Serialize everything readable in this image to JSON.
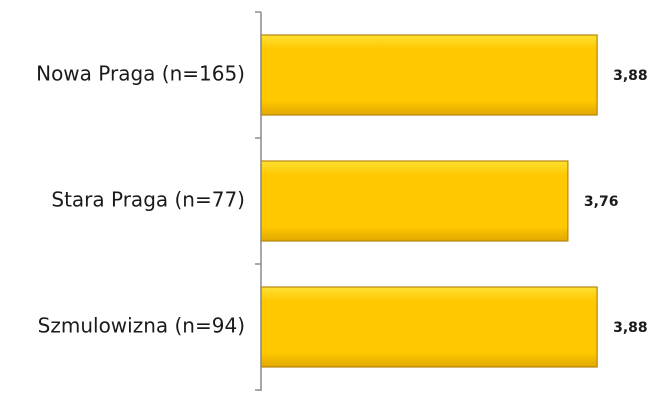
{
  "chart_data": {
    "type": "bar",
    "orientation": "horizontal",
    "categories": [
      "Nowa Praga (n=165)",
      "Stara Praga (n=77)",
      "Szmulowizna (n=94)"
    ],
    "values": [
      3.88,
      3.76,
      3.88
    ],
    "value_labels": [
      "3,88",
      "3,76",
      "3,88"
    ],
    "title": "",
    "xlabel": "",
    "ylabel": "",
    "xlim": [
      2.5,
      3.9
    ],
    "grid": false,
    "legend": "none",
    "colors": {
      "bar_fill_light": "#ffe033",
      "bar_fill_mid": "#ffc800",
      "bar_fill_dark": "#e0a800",
      "bar_edge": "#b8860b",
      "axis": "#8c8c8c",
      "text": "#1a1a1a"
    }
  }
}
